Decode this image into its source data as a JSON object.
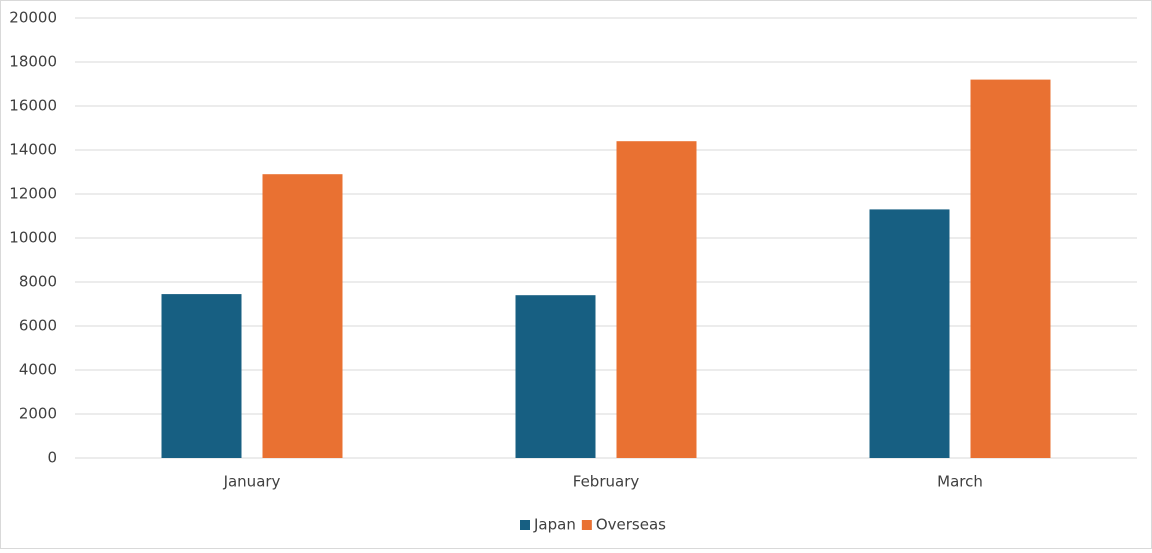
{
  "chart_data": {
    "type": "bar",
    "categories": [
      "January",
      "February",
      "March"
    ],
    "series": [
      {
        "name": "Japan",
        "color": "#175f82",
        "values": [
          7450,
          7400,
          11300
        ]
      },
      {
        "name": "Overseas",
        "color": "#e97132",
        "values": [
          12900,
          14400,
          17200
        ]
      }
    ],
    "ylim": [
      0,
      20000
    ],
    "yticks": [
      0,
      2000,
      4000,
      6000,
      8000,
      10000,
      12000,
      14000,
      16000,
      18000,
      20000
    ],
    "grid": true,
    "legend": "bottom"
  }
}
